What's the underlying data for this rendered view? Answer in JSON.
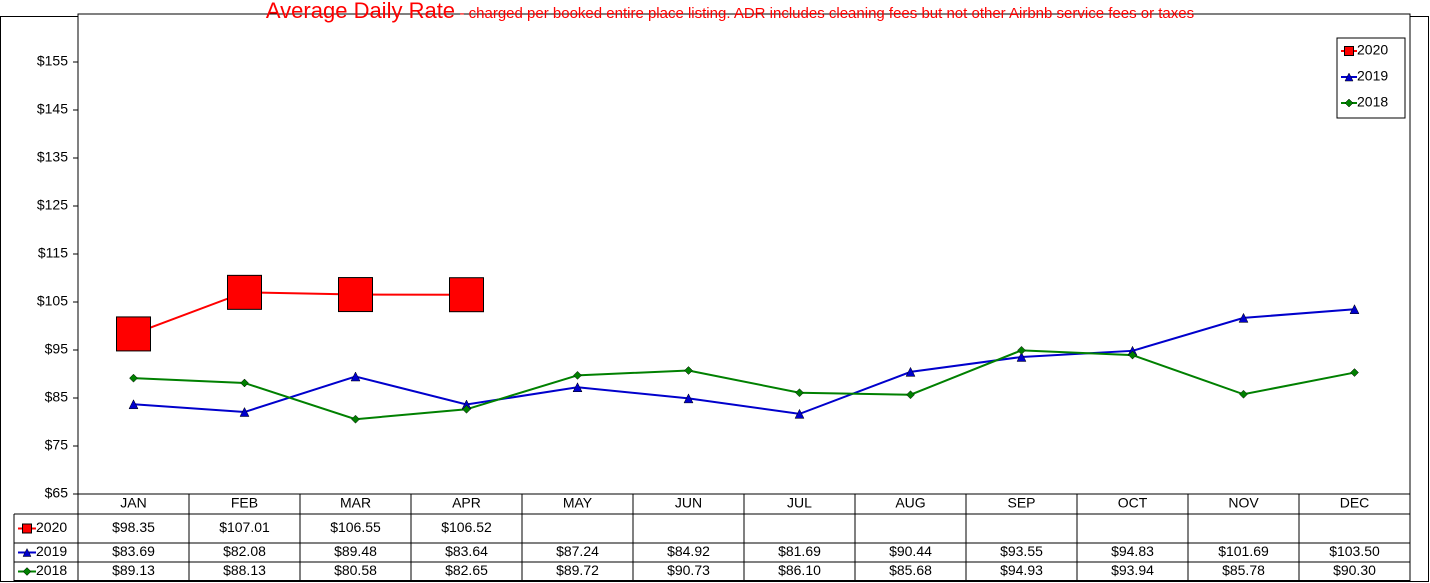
{
  "chart_data": {
    "type": "line",
    "title": "Average Daily Rate",
    "subtitle": "- charged per booked entire place listing. ADR includes cleaning fees but not other Airbnb service fees or taxes",
    "categories": [
      "JAN",
      "FEB",
      "MAR",
      "APR",
      "MAY",
      "JUN",
      "JUL",
      "AUG",
      "SEP",
      "OCT",
      "NOV",
      "DEC"
    ],
    "series": [
      {
        "name": "2020",
        "color": "#ff0000",
        "marker": "square",
        "values": [
          98.35,
          107.01,
          106.55,
          106.52,
          null,
          null,
          null,
          null,
          null,
          null,
          null,
          null
        ],
        "value_labels": [
          "$98.35",
          "$107.01",
          "$106.55",
          "$106.52",
          null,
          null,
          null,
          null,
          null,
          null,
          null,
          null
        ]
      },
      {
        "name": "2019",
        "color": "#0000cc",
        "marker": "triangle",
        "values": [
          83.69,
          82.08,
          89.48,
          83.64,
          87.24,
          84.92,
          81.69,
          90.44,
          93.55,
          94.83,
          101.69,
          103.5
        ],
        "value_labels": [
          "$83.69",
          "$82.08",
          "$89.48",
          "$83.64",
          "$87.24",
          "$84.92",
          "$81.69",
          "$90.44",
          "$93.55",
          "$94.83",
          "$101.69",
          "$103.50"
        ]
      },
      {
        "name": "2018",
        "color": "#008000",
        "marker": "diamond",
        "values": [
          89.13,
          88.13,
          80.58,
          82.65,
          89.72,
          90.73,
          86.1,
          85.68,
          94.93,
          93.94,
          85.78,
          90.3
        ],
        "value_labels": [
          "$89.13",
          "$88.13",
          "$80.58",
          "$82.65",
          "$89.72",
          "$90.73",
          "$86.10",
          "$85.68",
          "$94.93",
          "$93.94",
          "$85.78",
          "$90.30"
        ]
      }
    ],
    "ylim": [
      65,
      165
    ],
    "yticks": [
      {
        "value": 65,
        "label": "$65"
      },
      {
        "value": 75,
        "label": "$75"
      },
      {
        "value": 85,
        "label": "$85"
      },
      {
        "value": 95,
        "label": "$95"
      },
      {
        "value": 105,
        "label": "$105"
      },
      {
        "value": 115,
        "label": "$115"
      },
      {
        "value": 125,
        "label": "$125"
      },
      {
        "value": 135,
        "label": "$135"
      },
      {
        "value": 145,
        "label": "$145"
      },
      {
        "value": 155,
        "label": "$155"
      }
    ],
    "grid": false,
    "legend": "top-right"
  }
}
